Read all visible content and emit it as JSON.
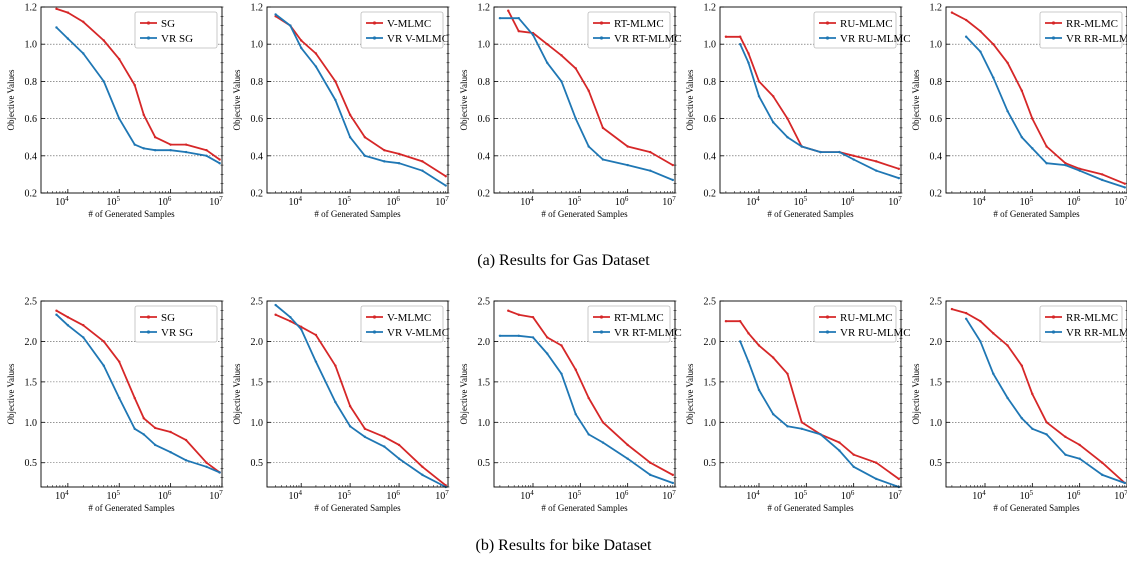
{
  "captions": {
    "row_a": "(a)  Results for Gas Dataset",
    "row_b": "(b)  Results for bike Dataset"
  },
  "colors": {
    "method": "#d62728",
    "vr": "#1f77b4",
    "grid": "#555555"
  },
  "chart_data": [
    {
      "type": "line",
      "row": "a",
      "xscale": "log",
      "xlim": [
        3000,
        10000000
      ],
      "ylim": [
        0.2,
        1.2
      ],
      "xlabel": "# of Generated Samples",
      "ylabel": "Objective Values",
      "grid": "y-dashed",
      "legend": "top-right",
      "x_ticks": [
        "10^4",
        "10^5",
        "10^6",
        "10^7"
      ],
      "y_ticks": [
        "0.2",
        "0.4",
        "0.6",
        "0.8",
        "1.0",
        "1.2"
      ],
      "series": [
        {
          "name": "SG",
          "x": [
            6000,
            10000,
            20000,
            50000,
            100000,
            200000,
            300000,
            500000,
            1000000,
            2000000,
            5000000,
            9000000
          ],
          "y": [
            1.19,
            1.17,
            1.12,
            1.02,
            0.92,
            0.78,
            0.62,
            0.5,
            0.46,
            0.46,
            0.43,
            0.38
          ]
        },
        {
          "name": "VR SG",
          "x": [
            6000,
            10000,
            20000,
            50000,
            100000,
            200000,
            300000,
            500000,
            1000000,
            2000000,
            5000000,
            9000000
          ],
          "y": [
            1.09,
            1.03,
            0.95,
            0.8,
            0.6,
            0.46,
            0.44,
            0.43,
            0.43,
            0.42,
            0.4,
            0.36
          ]
        }
      ]
    },
    {
      "type": "line",
      "row": "a",
      "xscale": "log",
      "xlim": [
        2000,
        10000000
      ],
      "ylim": [
        0.2,
        1.2
      ],
      "xlabel": "# of Generated Samples",
      "ylabel": "Objective Values",
      "grid": "y-dashed",
      "legend": "top-right",
      "x_ticks": [
        "10^4",
        "10^5",
        "10^6",
        "10^7"
      ],
      "y_ticks": [
        "0.2",
        "0.4",
        "0.6",
        "0.8",
        "1.0",
        "1.2"
      ],
      "series": [
        {
          "name": "V-MLMC",
          "x": [
            3000,
            6000,
            10000,
            20000,
            50000,
            100000,
            200000,
            500000,
            1000000,
            3000000,
            9000000
          ],
          "y": [
            1.15,
            1.1,
            1.02,
            0.95,
            0.8,
            0.62,
            0.5,
            0.43,
            0.41,
            0.37,
            0.29
          ]
        },
        {
          "name": "VR V-MLMC",
          "x": [
            3000,
            6000,
            10000,
            20000,
            50000,
            100000,
            200000,
            500000,
            1000000,
            3000000,
            9000000
          ],
          "y": [
            1.16,
            1.1,
            0.98,
            0.88,
            0.7,
            0.5,
            0.4,
            0.37,
            0.36,
            0.32,
            0.24
          ]
        }
      ]
    },
    {
      "type": "line",
      "row": "a",
      "xscale": "log",
      "xlim": [
        1500,
        10000000
      ],
      "ylim": [
        0.2,
        1.2
      ],
      "xlabel": "# of Generated Samples",
      "ylabel": "Objective Values",
      "grid": "y-dashed",
      "legend": "top-right",
      "x_ticks": [
        "10^4",
        "10^5",
        "10^6",
        "10^7"
      ],
      "y_ticks": [
        "0.2",
        "0.4",
        "0.6",
        "0.8",
        "1.0",
        "1.2"
      ],
      "series": [
        {
          "name": "RT-MLMC",
          "x": [
            3000,
            5000,
            10000,
            20000,
            40000,
            80000,
            150000,
            300000,
            1000000,
            3000000,
            9000000
          ],
          "y": [
            1.18,
            1.07,
            1.06,
            1.0,
            0.94,
            0.87,
            0.75,
            0.55,
            0.45,
            0.42,
            0.35
          ]
        },
        {
          "name": "VR RT-MLMC",
          "x": [
            2000,
            5000,
            10000,
            20000,
            40000,
            80000,
            150000,
            300000,
            1000000,
            3000000,
            9000000
          ],
          "y": [
            1.14,
            1.14,
            1.05,
            0.9,
            0.8,
            0.6,
            0.45,
            0.38,
            0.35,
            0.32,
            0.27
          ]
        }
      ]
    },
    {
      "type": "line",
      "row": "a",
      "xscale": "log",
      "xlim": [
        1500,
        10000000
      ],
      "ylim": [
        0.2,
        1.2
      ],
      "xlabel": "# of Generated Samples",
      "ylabel": "Objective Values",
      "grid": "y-dashed",
      "legend": "top-right",
      "x_ticks": [
        "10^4",
        "10^5",
        "10^6",
        "10^7"
      ],
      "y_ticks": [
        "0.2",
        "0.4",
        "0.6",
        "0.8",
        "1.0",
        "1.2"
      ],
      "series": [
        {
          "name": "RU-MLMC",
          "x": [
            2000,
            4000,
            6000,
            10000,
            20000,
            40000,
            80000,
            200000,
            500000,
            1000000,
            3000000,
            9000000
          ],
          "y": [
            1.04,
            1.04,
            0.95,
            0.8,
            0.72,
            0.6,
            0.45,
            0.42,
            0.42,
            0.4,
            0.37,
            0.33
          ]
        },
        {
          "name": "VR RU-MLMC",
          "x": [
            4000,
            6000,
            10000,
            20000,
            40000,
            80000,
            200000,
            500000,
            1000000,
            3000000,
            9000000
          ],
          "y": [
            1.0,
            0.9,
            0.72,
            0.58,
            0.5,
            0.45,
            0.42,
            0.42,
            0.38,
            0.32,
            0.28
          ]
        }
      ]
    },
    {
      "type": "line",
      "row": "a",
      "xscale": "log",
      "xlim": [
        1500,
        10000000
      ],
      "ylim": [
        0.2,
        1.2
      ],
      "xlabel": "# of Generated Samples",
      "ylabel": "Objective Values",
      "grid": "y-dashed",
      "legend": "top-right",
      "x_ticks": [
        "10^4",
        "10^5",
        "10^6",
        "10^7"
      ],
      "y_ticks": [
        "0.2",
        "0.4",
        "0.6",
        "0.8",
        "1.0",
        "1.2"
      ],
      "series": [
        {
          "name": "RR-MLMC",
          "x": [
            2000,
            4000,
            8000,
            15000,
            30000,
            60000,
            100000,
            200000,
            500000,
            1000000,
            3000000,
            9000000
          ],
          "y": [
            1.17,
            1.13,
            1.07,
            1.0,
            0.9,
            0.75,
            0.6,
            0.45,
            0.36,
            0.33,
            0.3,
            0.25
          ]
        },
        {
          "name": "VR RR-MLMC",
          "x": [
            4000,
            8000,
            15000,
            30000,
            60000,
            100000,
            200000,
            500000,
            1000000,
            3000000,
            9000000
          ],
          "y": [
            1.04,
            0.96,
            0.82,
            0.64,
            0.5,
            0.44,
            0.36,
            0.35,
            0.32,
            0.27,
            0.23
          ]
        }
      ]
    },
    {
      "type": "line",
      "row": "b",
      "xscale": "log",
      "xlim": [
        3000,
        10000000
      ],
      "ylim": [
        0.2,
        2.5
      ],
      "xlabel": "# of Generated Samples",
      "ylabel": "Objective Values",
      "grid": "y-dashed",
      "legend": "top-right",
      "x_ticks": [
        "10^4",
        "10^5",
        "10^6",
        "10^7"
      ],
      "y_ticks": [
        "0.5",
        "1.0",
        "1.5",
        "2.0",
        "2.5"
      ],
      "series": [
        {
          "name": "SG",
          "x": [
            6000,
            10000,
            20000,
            50000,
            100000,
            200000,
            300000,
            500000,
            1000000,
            2000000,
            5000000,
            9000000
          ],
          "y": [
            2.38,
            2.3,
            2.2,
            2.0,
            1.75,
            1.3,
            1.05,
            0.93,
            0.88,
            0.78,
            0.5,
            0.38
          ]
        },
        {
          "name": "VR SG",
          "x": [
            6000,
            10000,
            20000,
            50000,
            100000,
            200000,
            300000,
            500000,
            1000000,
            2000000,
            5000000,
            9000000
          ],
          "y": [
            2.33,
            2.2,
            2.05,
            1.7,
            1.3,
            0.92,
            0.85,
            0.72,
            0.63,
            0.53,
            0.45,
            0.38
          ]
        }
      ]
    },
    {
      "type": "line",
      "row": "b",
      "xscale": "log",
      "xlim": [
        2000,
        10000000
      ],
      "ylim": [
        0.2,
        2.5
      ],
      "xlabel": "# of Generated Samples",
      "ylabel": "Objective Values",
      "grid": "y-dashed",
      "legend": "top-right",
      "x_ticks": [
        "10^4",
        "10^5",
        "10^6",
        "10^7"
      ],
      "y_ticks": [
        "0.5",
        "1.0",
        "1.5",
        "2.0",
        "2.5"
      ],
      "series": [
        {
          "name": "V-MLMC",
          "x": [
            3000,
            6000,
            10000,
            20000,
            50000,
            100000,
            200000,
            500000,
            1000000,
            3000000,
            9000000
          ],
          "y": [
            2.33,
            2.25,
            2.18,
            2.08,
            1.7,
            1.2,
            0.92,
            0.82,
            0.72,
            0.45,
            0.22
          ]
        },
        {
          "name": "VR V-MLMC",
          "x": [
            3000,
            6000,
            10000,
            20000,
            50000,
            100000,
            200000,
            500000,
            1000000,
            3000000,
            9000000
          ],
          "y": [
            2.45,
            2.3,
            2.15,
            1.75,
            1.25,
            0.95,
            0.82,
            0.7,
            0.55,
            0.35,
            0.2
          ]
        }
      ]
    },
    {
      "type": "line",
      "row": "b",
      "xscale": "log",
      "xlim": [
        1500,
        10000000
      ],
      "ylim": [
        0.2,
        2.5
      ],
      "xlabel": "# of Generated Samples",
      "ylabel": "Objective Values",
      "grid": "y-dashed",
      "legend": "top-right",
      "x_ticks": [
        "10^4",
        "10^5",
        "10^6",
        "10^7"
      ],
      "y_ticks": [
        "0.5",
        "1.0",
        "1.5",
        "2.0",
        "2.5"
      ],
      "series": [
        {
          "name": "RT-MLMC",
          "x": [
            3000,
            5000,
            10000,
            20000,
            40000,
            80000,
            150000,
            300000,
            1000000,
            3000000,
            9000000
          ],
          "y": [
            2.38,
            2.33,
            2.3,
            2.05,
            1.95,
            1.65,
            1.3,
            1.0,
            0.72,
            0.5,
            0.35
          ]
        },
        {
          "name": "VR RT-MLMC",
          "x": [
            2000,
            5000,
            10000,
            20000,
            40000,
            80000,
            150000,
            300000,
            1000000,
            3000000,
            9000000
          ],
          "y": [
            2.07,
            2.07,
            2.05,
            1.85,
            1.6,
            1.1,
            0.85,
            0.75,
            0.55,
            0.35,
            0.25
          ]
        }
      ]
    },
    {
      "type": "line",
      "row": "b",
      "xscale": "log",
      "xlim": [
        1500,
        10000000
      ],
      "ylim": [
        0.2,
        2.5
      ],
      "xlabel": "# of Generated Samples",
      "ylabel": "Objective Values",
      "grid": "y-dashed",
      "legend": "top-right",
      "x_ticks": [
        "10^4",
        "10^5",
        "10^6",
        "10^7"
      ],
      "y_ticks": [
        "0.5",
        "1.0",
        "1.5",
        "2.0",
        "2.5"
      ],
      "series": [
        {
          "name": "RU-MLMC",
          "x": [
            2000,
            4000,
            6000,
            10000,
            20000,
            40000,
            80000,
            200000,
            500000,
            1000000,
            3000000,
            9000000
          ],
          "y": [
            2.25,
            2.25,
            2.1,
            1.95,
            1.8,
            1.6,
            1.0,
            0.85,
            0.75,
            0.6,
            0.5,
            0.3
          ]
        },
        {
          "name": "VR RU-MLMC",
          "x": [
            4000,
            6000,
            10000,
            20000,
            40000,
            80000,
            200000,
            500000,
            1000000,
            3000000,
            9000000
          ],
          "y": [
            2.0,
            1.75,
            1.4,
            1.1,
            0.95,
            0.92,
            0.85,
            0.65,
            0.45,
            0.3,
            0.2
          ]
        }
      ]
    },
    {
      "type": "line",
      "row": "b",
      "xscale": "log",
      "xlim": [
        1500,
        10000000
      ],
      "ylim": [
        0.2,
        2.5
      ],
      "xlabel": "# of Generated Samples",
      "ylabel": "Objective Values",
      "grid": "y-dashed",
      "legend": "top-right",
      "x_ticks": [
        "10^4",
        "10^5",
        "10^6",
        "10^7"
      ],
      "y_ticks": [
        "0.5",
        "1.0",
        "1.5",
        "2.0",
        "2.5"
      ],
      "series": [
        {
          "name": "RR-MLMC",
          "x": [
            2000,
            4000,
            8000,
            15000,
            30000,
            60000,
            100000,
            200000,
            500000,
            1000000,
            3000000,
            9000000
          ],
          "y": [
            2.4,
            2.35,
            2.25,
            2.1,
            1.95,
            1.7,
            1.35,
            1.0,
            0.82,
            0.72,
            0.5,
            0.25
          ]
        },
        {
          "name": "VR RR-MLMC",
          "x": [
            4000,
            8000,
            15000,
            30000,
            60000,
            100000,
            200000,
            500000,
            1000000,
            3000000,
            9000000
          ],
          "y": [
            2.28,
            2.0,
            1.6,
            1.3,
            1.05,
            0.92,
            0.85,
            0.6,
            0.55,
            0.35,
            0.25
          ]
        }
      ]
    }
  ]
}
